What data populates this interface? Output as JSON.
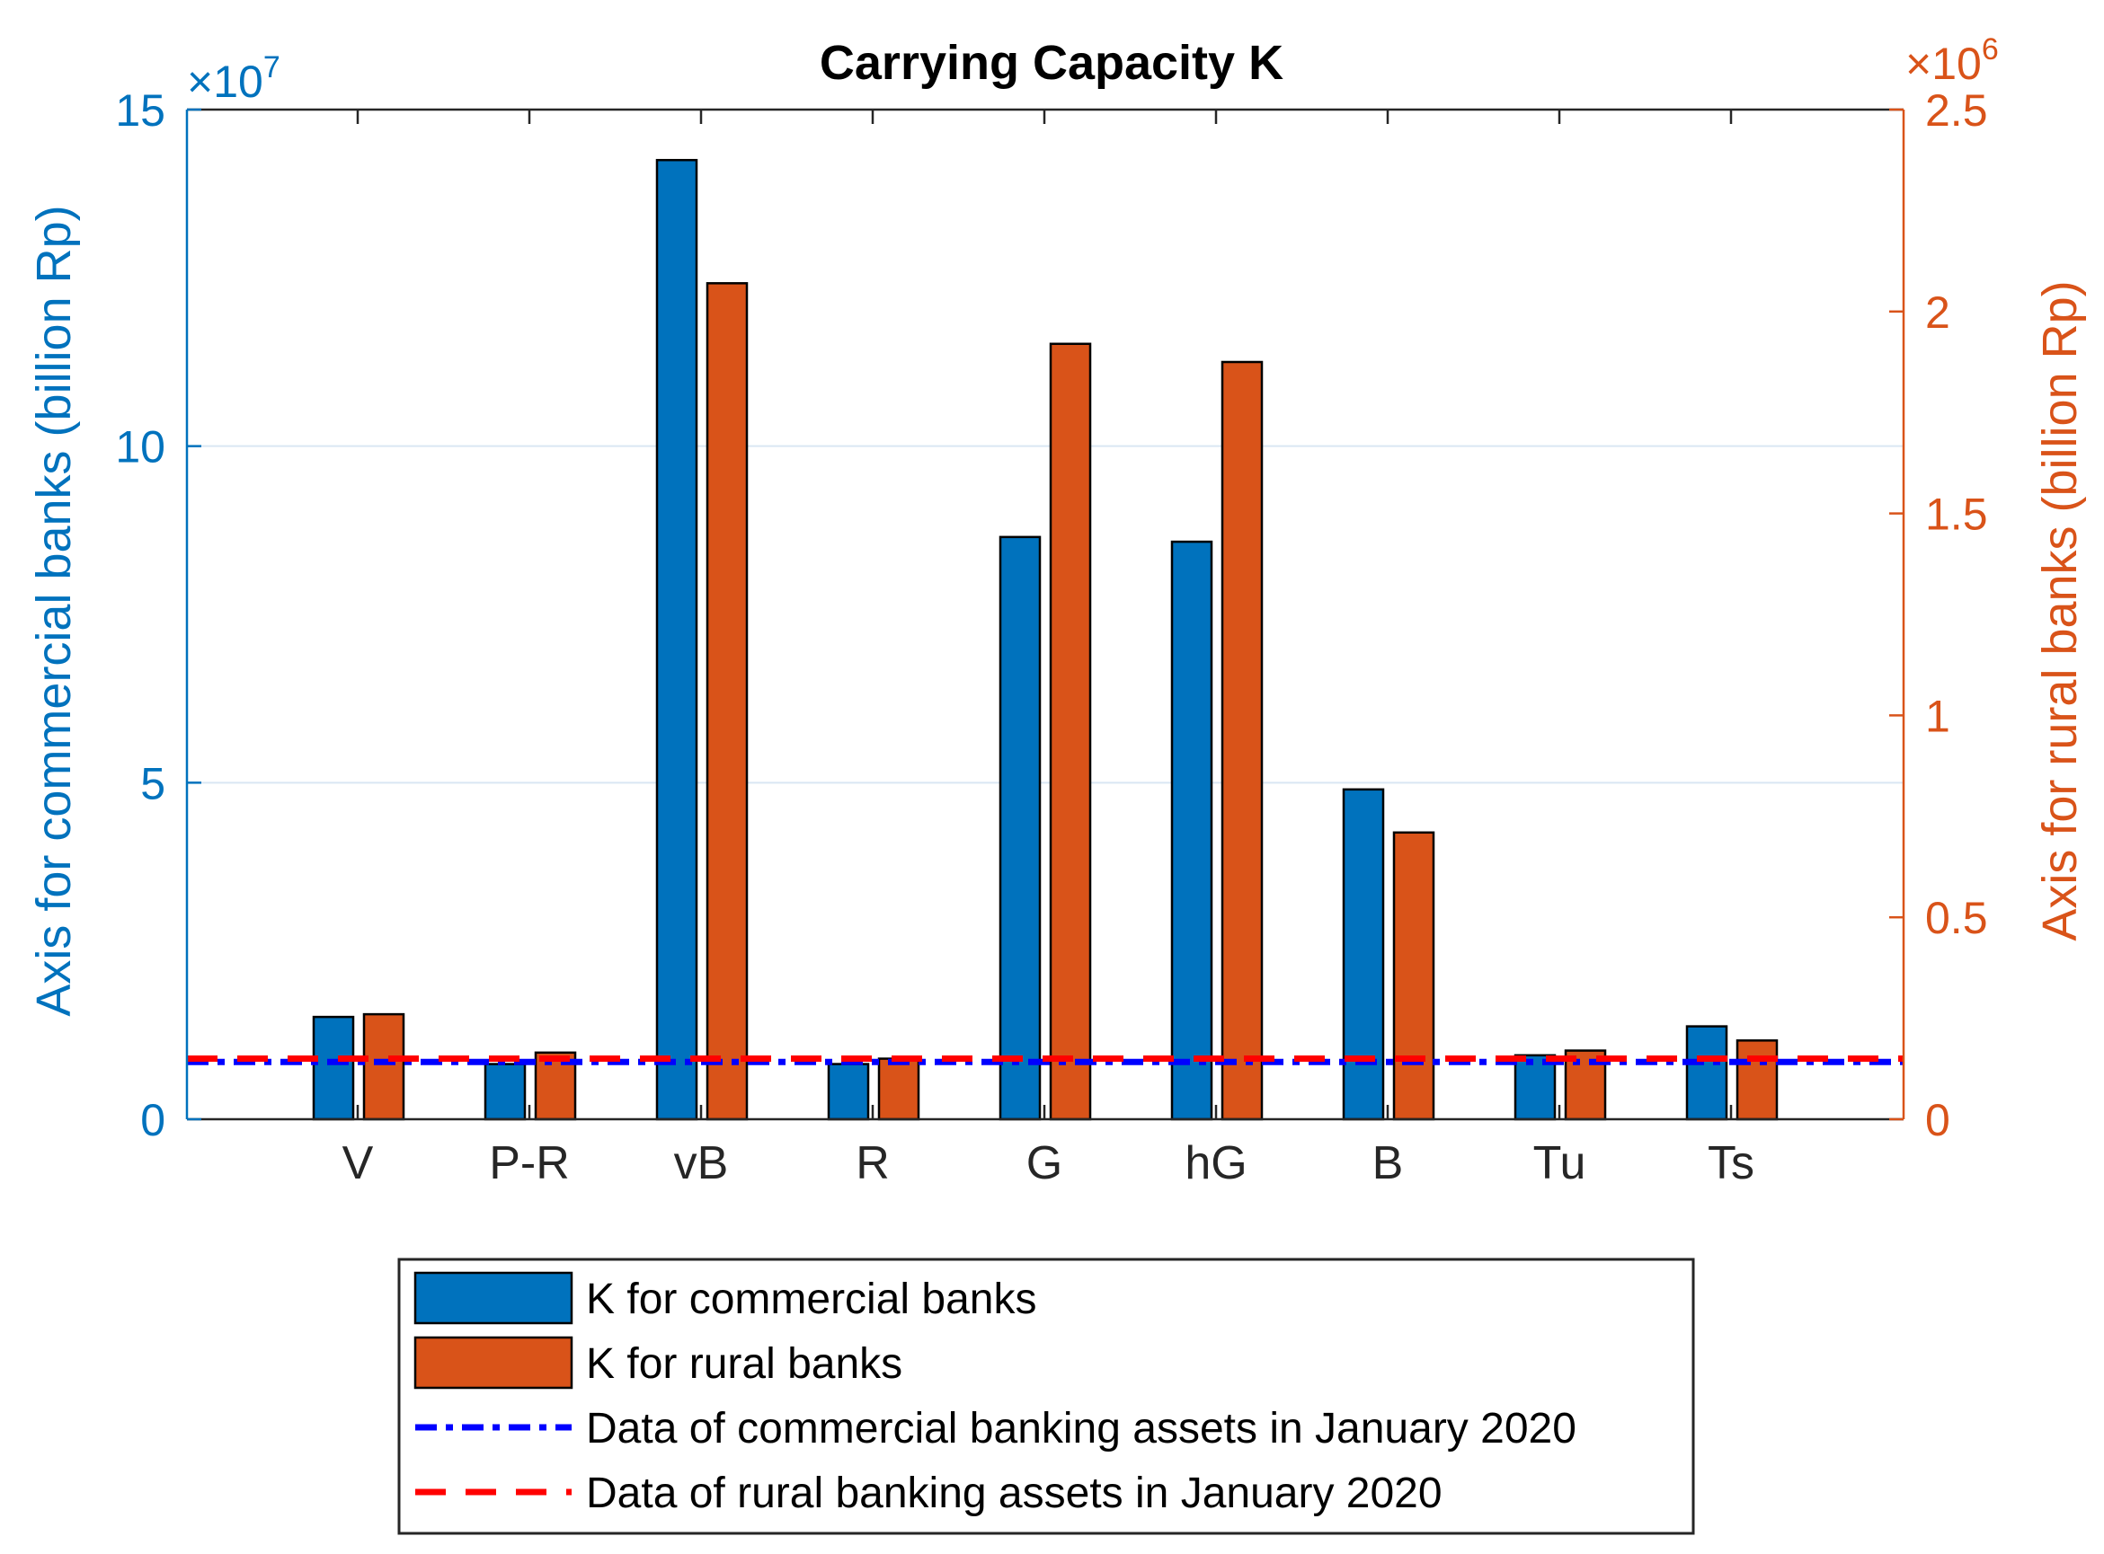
{
  "colors": {
    "left_axis": "#0072BD",
    "right_axis": "#D95319",
    "bar_left": "#0072BD",
    "bar_right": "#D95319",
    "line_commercial": "#0000FF",
    "line_rural": "#FF0000",
    "grid": "#D9E7F3",
    "frame": "#262626"
  },
  "chart_data": {
    "type": "bar",
    "title": "Carrying Capacity K",
    "categories": [
      "V",
      "P-R",
      "vB",
      "R",
      "G",
      "hG",
      "B",
      "Tu",
      "Ts"
    ],
    "left_axis": {
      "label": "Axis for commercial banks (billion Rp)",
      "exponent_label": "×10",
      "exponent_power": "7",
      "ylim": [
        0,
        15
      ],
      "ticks": [
        0,
        5,
        10,
        15
      ],
      "tick_labels": [
        "0",
        "5",
        "10",
        "15"
      ]
    },
    "right_axis": {
      "label": "Axis for rural banks (billion Rp)",
      "exponent_label": "×10",
      "exponent_power": "6",
      "ylim": [
        0,
        2.5
      ],
      "ticks": [
        0,
        0.5,
        1,
        1.5,
        2,
        2.5
      ],
      "tick_labels": [
        "0",
        "0.5",
        "1",
        "1.5",
        "2",
        "2.5"
      ]
    },
    "series": [
      {
        "name": "K for commercial banks",
        "axis": "left",
        "values": [
          1.52,
          0.82,
          14.25,
          0.82,
          8.65,
          8.58,
          4.9,
          0.95,
          1.38
        ]
      },
      {
        "name": "K for rural banks",
        "axis": "right",
        "values": [
          0.26,
          0.165,
          2.07,
          0.15,
          1.92,
          1.875,
          0.71,
          0.17,
          0.195
        ]
      }
    ],
    "reference_lines": [
      {
        "name": "Data of commercial banking assets in January 2020",
        "axis": "left",
        "value": 0.85,
        "style": "dash-dot"
      },
      {
        "name": "Data of rural banking assets in January 2020",
        "axis": "right",
        "value": 0.15,
        "style": "dashed"
      }
    ],
    "grid": "horizontal",
    "legend_position": "bottom"
  }
}
